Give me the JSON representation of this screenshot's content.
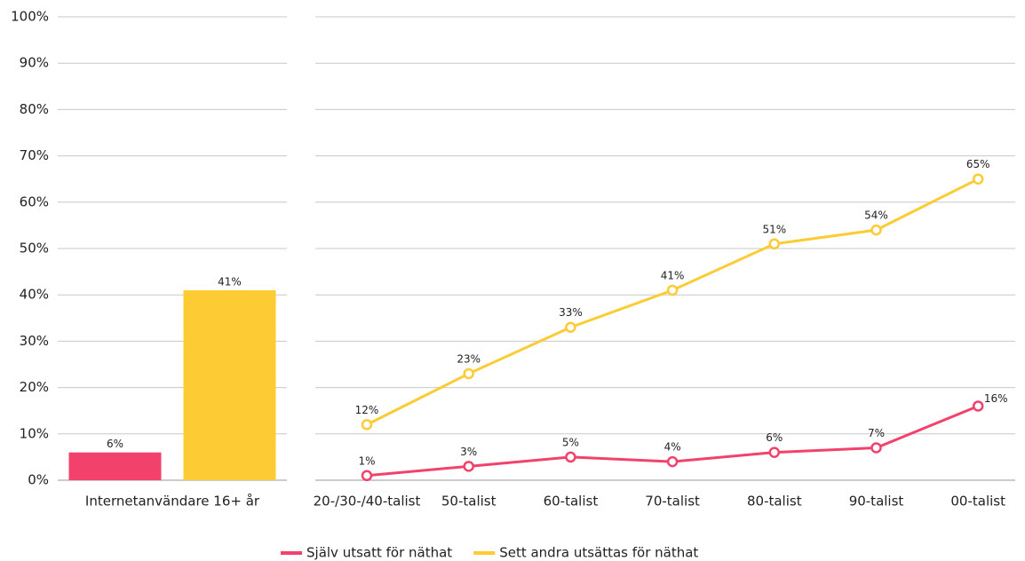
{
  "chart_data": [
    {
      "type": "bar",
      "categories": [
        "Internetanvändare 16+ år"
      ],
      "series": [
        {
          "color": "#f2416b",
          "values": [
            6
          ],
          "value_labels": [
            "6%"
          ]
        },
        {
          "color": "#fdcb33",
          "values": [
            41
          ],
          "value_labels": [
            "41%"
          ]
        }
      ],
      "ylim": [
        0,
        100
      ],
      "yticks": [
        {
          "value": 0,
          "label": "0%"
        },
        {
          "value": 10,
          "label": "10%"
        },
        {
          "value": 20,
          "label": "20%"
        },
        {
          "value": 30,
          "label": "30%"
        },
        {
          "value": 40,
          "label": "40%"
        },
        {
          "value": 50,
          "label": "50%"
        },
        {
          "value": 60,
          "label": "60%"
        },
        {
          "value": 70,
          "label": "70%"
        },
        {
          "value": 80,
          "label": "80%"
        },
        {
          "value": 90,
          "label": "90%"
        },
        {
          "value": 100,
          "label": "100%"
        }
      ],
      "grid": true
    },
    {
      "type": "line",
      "categories": [
        "20-/30-/40-talist",
        "50-talist",
        "60-talist",
        "70-talist",
        "80-talist",
        "90-talist",
        "00-talist"
      ],
      "series": [
        {
          "name": "Själv utsatt för näthat",
          "color": "#f2416b",
          "values": [
            1,
            3,
            5,
            4,
            6,
            7,
            16
          ],
          "value_labels": [
            "1%",
            "3%",
            "5%",
            "4%",
            "6%",
            "7%",
            "16%"
          ]
        },
        {
          "name": "Sett andra utsättas för näthat",
          "color": "#fdcb33",
          "values": [
            12,
            23,
            33,
            41,
            51,
            54,
            65
          ],
          "value_labels": [
            "12%",
            "23%",
            "33%",
            "41%",
            "51%",
            "54%",
            "65%"
          ]
        }
      ],
      "ylim": [
        0,
        100
      ],
      "yticks": [
        0,
        10,
        20,
        30,
        40,
        50,
        60,
        70,
        80,
        90,
        100
      ],
      "grid": true,
      "legend": "bottom"
    }
  ]
}
